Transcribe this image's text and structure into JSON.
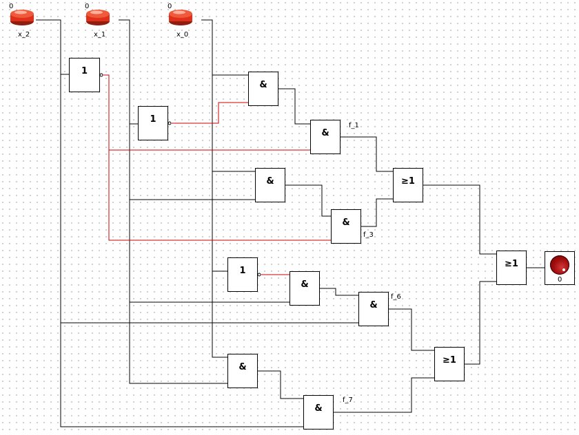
{
  "inputs": [
    {
      "name": "x_2",
      "value": "0"
    },
    {
      "name": "x_1",
      "value": "0"
    },
    {
      "name": "x_0",
      "value": "0"
    }
  ],
  "gates": {
    "not_symbol": "1",
    "and_symbol": "&",
    "or_symbol": "≥1"
  },
  "signals": {
    "f_1": "f_1",
    "f_3": "f_3",
    "f_6": "f_6",
    "f_7": "f_7"
  },
  "output": {
    "value": "0"
  },
  "colors": {
    "wire": "#000000",
    "active_wire": "#cc0000"
  },
  "icons": {
    "input": "push-button-icon",
    "output": "lamp-icon"
  }
}
